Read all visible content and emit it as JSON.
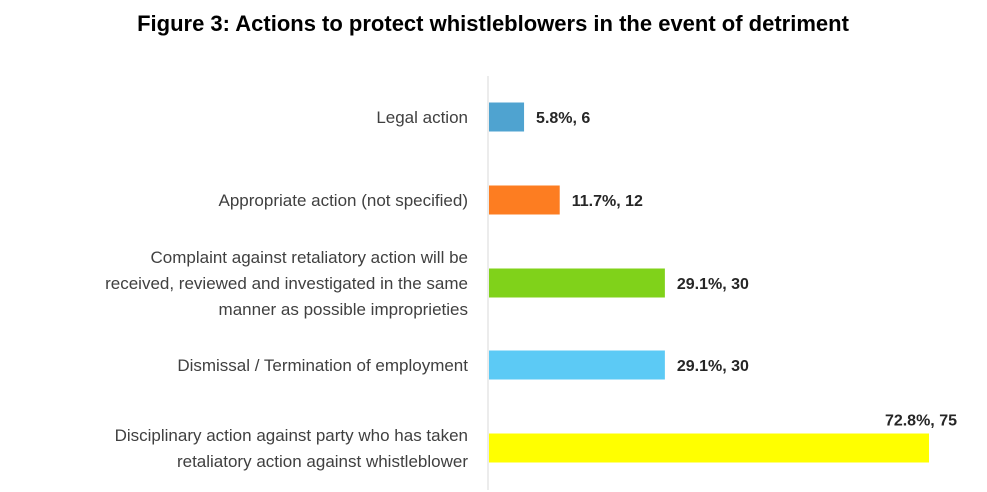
{
  "chart_data": {
    "type": "bar",
    "orientation": "horizontal",
    "title": "Figure 3: Actions to protect whistleblowers in the event of detriment",
    "categories": [
      "Legal action",
      "Appropriate action (not specified)",
      "Complaint against retaliatory action will be received, reviewed and investigated in the same manner as possible improprieties",
      "Dismissal / Termination of employment",
      "Disciplinary action against party who has taken retaliatory action against whistleblower"
    ],
    "category_lines": [
      [
        "Legal action"
      ],
      [
        "Appropriate action (not specified)"
      ],
      [
        "Complaint against retaliatory action will be",
        "received, reviewed and investigated in the same",
        "manner as possible improprieties"
      ],
      [
        "Dismissal / Termination of employment"
      ],
      [
        "Disciplinary action against party who has taken",
        "retaliatory action against whistleblower"
      ]
    ],
    "values": [
      5.8,
      11.7,
      29.1,
      29.1,
      72.8
    ],
    "counts": [
      6,
      12,
      30,
      30,
      75
    ],
    "data_labels": [
      "5.8%, 6",
      "11.7%, 12",
      "29.1%, 30",
      "29.1%, 30",
      "72.8%, 75"
    ],
    "colors": [
      "#4fa3d0",
      "#fd7d21",
      "#80d21a",
      "#5ccaf5",
      "#ffff00"
    ],
    "xlim": [
      0,
      72.8
    ],
    "grid": false,
    "legend": "none"
  }
}
